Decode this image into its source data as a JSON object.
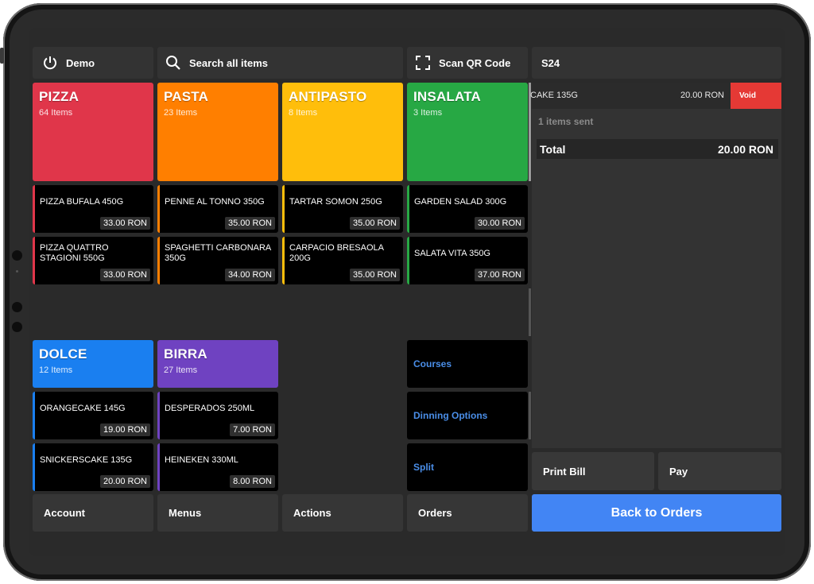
{
  "app": {
    "power_label": "Demo",
    "search_placeholder": "Search all items",
    "scan_label": "Scan QR Code",
    "table_label": "S24"
  },
  "categories": [
    {
      "name": "PIZZA",
      "count": "64 Items",
      "color": "#e0364a"
    },
    {
      "name": "PASTA",
      "count": "23 Items",
      "color": "#ff7f00"
    },
    {
      "name": "ANTIPASTO",
      "count": "8 Items",
      "color": "#ffbe0b"
    },
    {
      "name": "INSALATA",
      "count": "3 Items",
      "color": "#27a844"
    },
    {
      "name": "DOLCE",
      "count": "12 Items",
      "color": "#1a7ff0"
    },
    {
      "name": "BIRRA",
      "count": "27 Items",
      "color": "#6f42c1"
    }
  ],
  "items": {
    "pizza": [
      {
        "name": "PIZZA BUFALA 450G",
        "price": "33.00 RON"
      },
      {
        "name": "PIZZA QUATTRO STAGIONI 550G",
        "price": "33.00 RON"
      }
    ],
    "pasta": [
      {
        "name": "PENNE AL TONNO 350G",
        "price": "35.00 RON"
      },
      {
        "name": "SPAGHETTI CARBONARA 350G",
        "price": "34.00 RON"
      }
    ],
    "antipasto": [
      {
        "name": "TARTAR SOMON 250G",
        "price": "35.00 RON"
      },
      {
        "name": "CARPACIO BRESAOLA 200G",
        "price": "35.00 RON"
      }
    ],
    "insalata": [
      {
        "name": "GARDEN SALAD 300G",
        "price": "30.00 RON"
      },
      {
        "name": "SALATA VITA 350G",
        "price": "37.00 RON"
      }
    ],
    "dolce": [
      {
        "name": "ORANGECAKE 145G",
        "price": "19.00 RON"
      },
      {
        "name": "SNICKERSCAKE 135G",
        "price": "20.00 RON"
      }
    ],
    "birra": [
      {
        "name": "DESPERADOS 250ML",
        "price": "7.00 RON"
      },
      {
        "name": "HEINEKEN 330ML",
        "price": "8.00 RON"
      }
    ]
  },
  "actions": {
    "courses": "Courses",
    "dining": "Dinning Options",
    "split": "Split"
  },
  "order": {
    "line_name": "CAKE 135G",
    "line_price": "20.00 RON",
    "void_label": "Void",
    "sent_text": "1 items sent",
    "total_label": "Total",
    "total_value": "20.00 RON",
    "print_label": "Print Bill",
    "pay_label": "Pay",
    "back_label": "Back to Orders"
  },
  "bottom_nav": {
    "account": "Account",
    "menus": "Menus",
    "actions": "Actions",
    "orders": "Orders"
  },
  "colors": {
    "void": "#e53935",
    "back_button": "#4285f4",
    "action_text": "#4a8ee8"
  }
}
